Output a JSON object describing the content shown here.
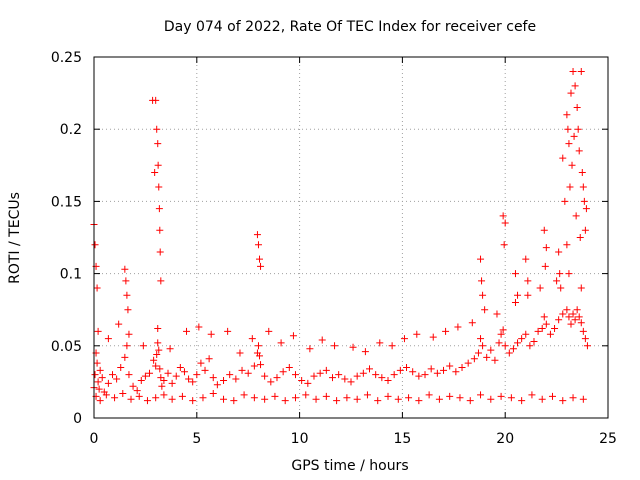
{
  "chart_data": {
    "type": "scatter",
    "title": "Day 074 of 2022, Rate Of TEC Index for receiver cefe",
    "xlabel": "GPS time / hours",
    "ylabel": "ROTI / TECUs",
    "xlim": [
      0,
      25
    ],
    "ylim": [
      0,
      0.25
    ],
    "xticks": [
      0,
      5,
      10,
      15,
      20,
      25
    ],
    "xtick_labels": [
      "0",
      "5",
      "10",
      "15",
      "20",
      "25"
    ],
    "yticks": [
      0,
      0.05,
      0.1,
      0.15,
      0.2,
      0.25
    ],
    "ytick_labels": [
      "0",
      "0.05",
      "0.1",
      "0.15",
      "0.2",
      "0.25"
    ],
    "grid": true,
    "marker": "+",
    "color": "#ff0000",
    "series": [
      {
        "name": "ROTI",
        "x": [
          0.0,
          0.05,
          0.1,
          0.15,
          0.2,
          0.25,
          0.3,
          0.4,
          0.5,
          0.7,
          0.9,
          1.1,
          1.3,
          1.5,
          1.6,
          1.7,
          1.9,
          2.1,
          2.3,
          2.5,
          2.7,
          2.9,
          3.0,
          3.05,
          3.1,
          3.15,
          3.2,
          3.25,
          3.3,
          3.4,
          3.6,
          3.8,
          4.0,
          4.2,
          4.4,
          4.6,
          4.8,
          5.0,
          5.2,
          5.4,
          5.6,
          5.8,
          6.0,
          6.3,
          6.6,
          6.9,
          7.2,
          7.5,
          7.8,
          7.95,
          8.0,
          8.05,
          8.1,
          8.3,
          8.6,
          8.9,
          9.2,
          9.5,
          9.8,
          10.1,
          10.4,
          10.7,
          11.0,
          11.3,
          11.6,
          11.9,
          12.2,
          12.5,
          12.8,
          13.1,
          13.4,
          13.7,
          14.0,
          14.3,
          14.6,
          14.9,
          15.2,
          15.5,
          15.8,
          16.1,
          16.4,
          16.7,
          17.0,
          17.3,
          17.6,
          17.9,
          18.2,
          18.5,
          18.7,
          18.8,
          18.9,
          19.1,
          19.3,
          19.5,
          19.7,
          19.8,
          19.9,
          20.0,
          20.2,
          20.4,
          20.6,
          20.8,
          21.0,
          21.2,
          21.4,
          21.6,
          21.8,
          21.9,
          22.0,
          22.2,
          22.4,
          22.6,
          22.8,
          23.0,
          23.1,
          23.2,
          23.3,
          23.4,
          23.5,
          23.6,
          23.7,
          23.8,
          23.9,
          24.0,
          0.1,
          0.3,
          0.6,
          1.0,
          1.4,
          1.8,
          2.2,
          2.6,
          3.0,
          3.4,
          3.8,
          4.3,
          4.8,
          5.3,
          5.8,
          6.3,
          6.8,
          7.3,
          7.8,
          8.3,
          8.8,
          9.3,
          9.8,
          10.3,
          10.8,
          11.3,
          11.8,
          12.3,
          12.8,
          13.3,
          13.8,
          14.3,
          14.8,
          15.3,
          15.8,
          16.3,
          16.8,
          17.3,
          17.8,
          18.3,
          18.8,
          19.3,
          19.8,
          20.3,
          20.8,
          21.3,
          21.8,
          22.3,
          22.8,
          23.3,
          23.8,
          0.2,
          0.7,
          1.2,
          1.7,
          2.4,
          3.1,
          3.7,
          4.5,
          5.1,
          5.7,
          6.5,
          7.1,
          7.7,
          8.5,
          9.1,
          9.7,
          10.5,
          11.1,
          11.7,
          12.6,
          13.2,
          13.9,
          14.5,
          15.1,
          15.7,
          16.5,
          17.1,
          17.7,
          18.4,
          19.0,
          19.6,
          20.5,
          21.1,
          21.7,
          22.5,
          23.1,
          23.7,
          3.0,
          3.05,
          3.1,
          3.12,
          3.15,
          3.18,
          3.2,
          3.22,
          3.25,
          2.85,
          2.95,
          7.95,
          8.0,
          8.05,
          8.1,
          19.9,
          20.0,
          19.95,
          18.8,
          18.85,
          18.9,
          21.9,
          22.0,
          21.95,
          22.6,
          22.65,
          22.7,
          23.0,
          23.05,
          23.1,
          23.2,
          23.3,
          23.4,
          23.5,
          23.55,
          23.6,
          23.7,
          23.75,
          23.8,
          23.85,
          23.9,
          23.15,
          23.25,
          23.35,
          23.45,
          23.65,
          23.95,
          22.8,
          22.9,
          23.0,
          21.0,
          21.1,
          20.5,
          20.6,
          0.0,
          0.05,
          0.1,
          0.15,
          1.5,
          1.55,
          1.6,
          1.65
        ],
        "y": [
          0.021,
          0.03,
          0.045,
          0.038,
          0.025,
          0.02,
          0.033,
          0.028,
          0.018,
          0.024,
          0.03,
          0.027,
          0.035,
          0.042,
          0.05,
          0.03,
          0.022,
          0.019,
          0.026,
          0.029,
          0.031,
          0.04,
          0.036,
          0.044,
          0.052,
          0.047,
          0.034,
          0.028,
          0.022,
          0.026,
          0.031,
          0.024,
          0.029,
          0.035,
          0.032,
          0.027,
          0.025,
          0.03,
          0.038,
          0.033,
          0.041,
          0.028,
          0.023,
          0.026,
          0.03,
          0.027,
          0.033,
          0.031,
          0.036,
          0.045,
          0.05,
          0.043,
          0.037,
          0.029,
          0.025,
          0.028,
          0.032,
          0.035,
          0.03,
          0.026,
          0.024,
          0.029,
          0.031,
          0.033,
          0.028,
          0.03,
          0.027,
          0.025,
          0.029,
          0.031,
          0.034,
          0.03,
          0.028,
          0.026,
          0.03,
          0.033,
          0.035,
          0.032,
          0.029,
          0.03,
          0.034,
          0.031,
          0.033,
          0.036,
          0.032,
          0.035,
          0.038,
          0.041,
          0.045,
          0.055,
          0.05,
          0.042,
          0.047,
          0.04,
          0.052,
          0.058,
          0.061,
          0.05,
          0.045,
          0.048,
          0.052,
          0.055,
          0.058,
          0.05,
          0.053,
          0.06,
          0.062,
          0.07,
          0.065,
          0.058,
          0.062,
          0.068,
          0.072,
          0.075,
          0.07,
          0.065,
          0.072,
          0.068,
          0.075,
          0.07,
          0.066,
          0.06,
          0.055,
          0.05,
          0.015,
          0.012,
          0.016,
          0.014,
          0.017,
          0.013,
          0.015,
          0.012,
          0.014,
          0.016,
          0.013,
          0.015,
          0.012,
          0.014,
          0.017,
          0.013,
          0.012,
          0.016,
          0.014,
          0.013,
          0.015,
          0.012,
          0.014,
          0.016,
          0.013,
          0.015,
          0.012,
          0.014,
          0.013,
          0.016,
          0.012,
          0.015,
          0.013,
          0.014,
          0.012,
          0.016,
          0.013,
          0.015,
          0.014,
          0.012,
          0.016,
          0.013,
          0.015,
          0.014,
          0.012,
          0.016,
          0.013,
          0.015,
          0.012,
          0.014,
          0.013,
          0.06,
          0.055,
          0.065,
          0.058,
          0.05,
          0.062,
          0.048,
          0.06,
          0.063,
          0.058,
          0.06,
          0.045,
          0.055,
          0.06,
          0.052,
          0.057,
          0.048,
          0.054,
          0.05,
          0.049,
          0.046,
          0.052,
          0.05,
          0.055,
          0.058,
          0.056,
          0.06,
          0.063,
          0.066,
          0.075,
          0.072,
          0.08,
          0.085,
          0.09,
          0.095,
          0.1,
          0.09,
          0.22,
          0.2,
          0.19,
          0.175,
          0.16,
          0.145,
          0.13,
          0.115,
          0.095,
          0.22,
          0.17,
          0.127,
          0.12,
          0.11,
          0.105,
          0.14,
          0.135,
          0.12,
          0.11,
          0.095,
          0.085,
          0.13,
          0.118,
          0.105,
          0.115,
          0.1,
          0.09,
          0.21,
          0.2,
          0.19,
          0.225,
          0.24,
          0.23,
          0.215,
          0.2,
          0.185,
          0.24,
          0.17,
          0.16,
          0.15,
          0.13,
          0.16,
          0.175,
          0.195,
          0.14,
          0.125,
          0.145,
          0.18,
          0.15,
          0.12,
          0.11,
          0.095,
          0.1,
          0.085,
          0.134,
          0.12,
          0.105,
          0.09,
          0.103,
          0.095,
          0.085,
          0.075
        ]
      }
    ]
  }
}
